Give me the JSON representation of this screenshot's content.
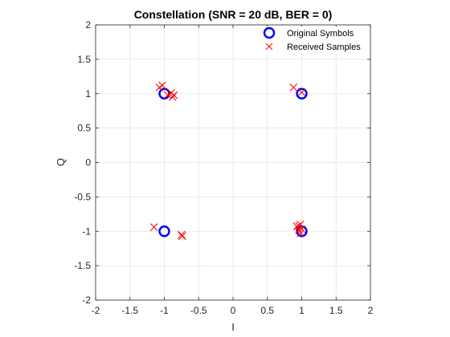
{
  "chart_data": {
    "type": "scatter",
    "title": "Constellation (SNR = 20 dB, BER = 0)",
    "xlabel": "I",
    "ylabel": "Q",
    "xlim": [
      -2,
      2
    ],
    "ylim": [
      -2,
      2
    ],
    "xticks": [
      "-2",
      "-1.5",
      "-1",
      "-0.5",
      "0",
      "0.5",
      "1",
      "1.5",
      "2"
    ],
    "yticks": [
      "-2",
      "-1.5",
      "-1",
      "-0.5",
      "0",
      "0.5",
      "1",
      "1.5",
      "2"
    ],
    "grid": true,
    "legend_position": "top-right",
    "series": [
      {
        "name": "Original Symbols",
        "marker": "circle",
        "color": "#0000FF",
        "points": [
          {
            "x": -1,
            "y": 1
          },
          {
            "x": 1,
            "y": 1
          },
          {
            "x": -1,
            "y": -1
          },
          {
            "x": 1,
            "y": -1
          }
        ]
      },
      {
        "name": "Received Samples",
        "marker": "cross",
        "color": "#FF0000",
        "points": [
          {
            "x": -1.07,
            "y": 1.09
          },
          {
            "x": -1.03,
            "y": 1.12
          },
          {
            "x": -0.95,
            "y": 0.98
          },
          {
            "x": -0.9,
            "y": 1.01
          },
          {
            "x": -0.88,
            "y": 0.95
          },
          {
            "x": -0.86,
            "y": 0.98
          },
          {
            "x": 0.88,
            "y": 1.09
          },
          {
            "x": 1.0,
            "y": 1.02
          },
          {
            "x": -1.15,
            "y": -0.94
          },
          {
            "x": -0.75,
            "y": -1.05
          },
          {
            "x": -0.74,
            "y": -1.07
          },
          {
            "x": 0.93,
            "y": -0.93
          },
          {
            "x": 0.96,
            "y": -0.92
          },
          {
            "x": 0.98,
            "y": -0.9
          },
          {
            "x": 0.96,
            "y": -0.98
          },
          {
            "x": 0.98,
            "y": -1.03
          },
          {
            "x": 1.0,
            "y": -0.97
          }
        ]
      }
    ]
  }
}
